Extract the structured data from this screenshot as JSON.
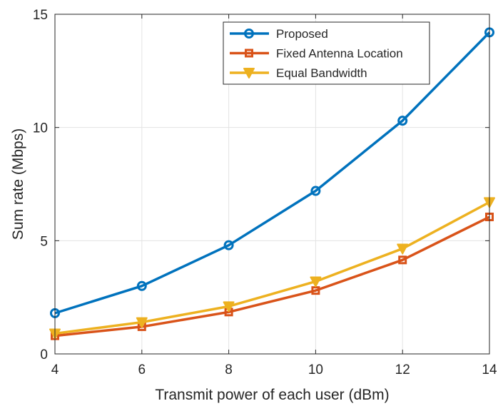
{
  "chart_data": {
    "type": "line",
    "xlabel": "Transmit power of each user (dBm)",
    "ylabel": "Sum rate (Mbps)",
    "x": [
      4,
      6,
      8,
      10,
      12,
      14
    ],
    "xlim": [
      4,
      14
    ],
    "ylim": [
      0,
      15
    ],
    "xticks": [
      4,
      6,
      8,
      10,
      12,
      14
    ],
    "yticks": [
      0,
      5,
      10,
      15
    ],
    "grid": true,
    "legend_position": "top-right",
    "series": [
      {
        "name": "Proposed",
        "color": "#0072BD",
        "marker": "circle",
        "values": [
          1.8,
          3.0,
          4.8,
          7.2,
          10.3,
          14.2
        ]
      },
      {
        "name": "Fixed Antenna Location",
        "color": "#D95319",
        "marker": "square",
        "values": [
          0.8,
          1.2,
          1.85,
          2.8,
          4.15,
          6.05
        ]
      },
      {
        "name": "Equal Bandwidth",
        "color": "#EDB120",
        "marker": "triangle-down",
        "values": [
          0.9,
          1.4,
          2.1,
          3.2,
          4.65,
          6.7
        ]
      }
    ]
  }
}
